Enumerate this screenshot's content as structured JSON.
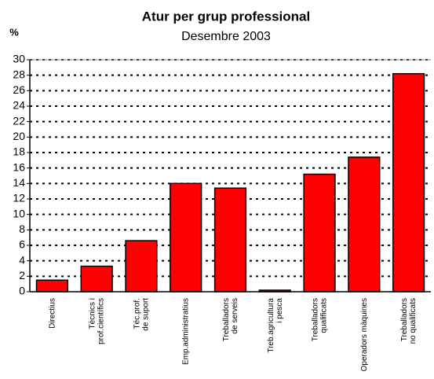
{
  "chart_data": {
    "type": "bar",
    "title": "Atur per grup professional",
    "subtitle": "Desembre 2003",
    "y_label": "%",
    "categories": [
      "Directius",
      "Tècnics i prof.científics",
      "Téc.prof. de suport",
      "Emp.administratius",
      "Treballadors de serveis",
      "Treb.agricultura i pesca",
      "Treballadors qualificats",
      "Operadors màquines",
      "Treballadors no qualificats"
    ],
    "values": [
      1.5,
      3.3,
      6.6,
      14.0,
      13.4,
      0.2,
      15.2,
      17.4,
      28.2
    ],
    "color": "#ff0000",
    "ylim": [
      0,
      30
    ],
    "yticks": [
      0,
      2,
      4,
      6,
      8,
      10,
      12,
      14,
      16,
      18,
      20,
      22,
      24,
      26,
      28,
      30
    ],
    "grid": true
  }
}
